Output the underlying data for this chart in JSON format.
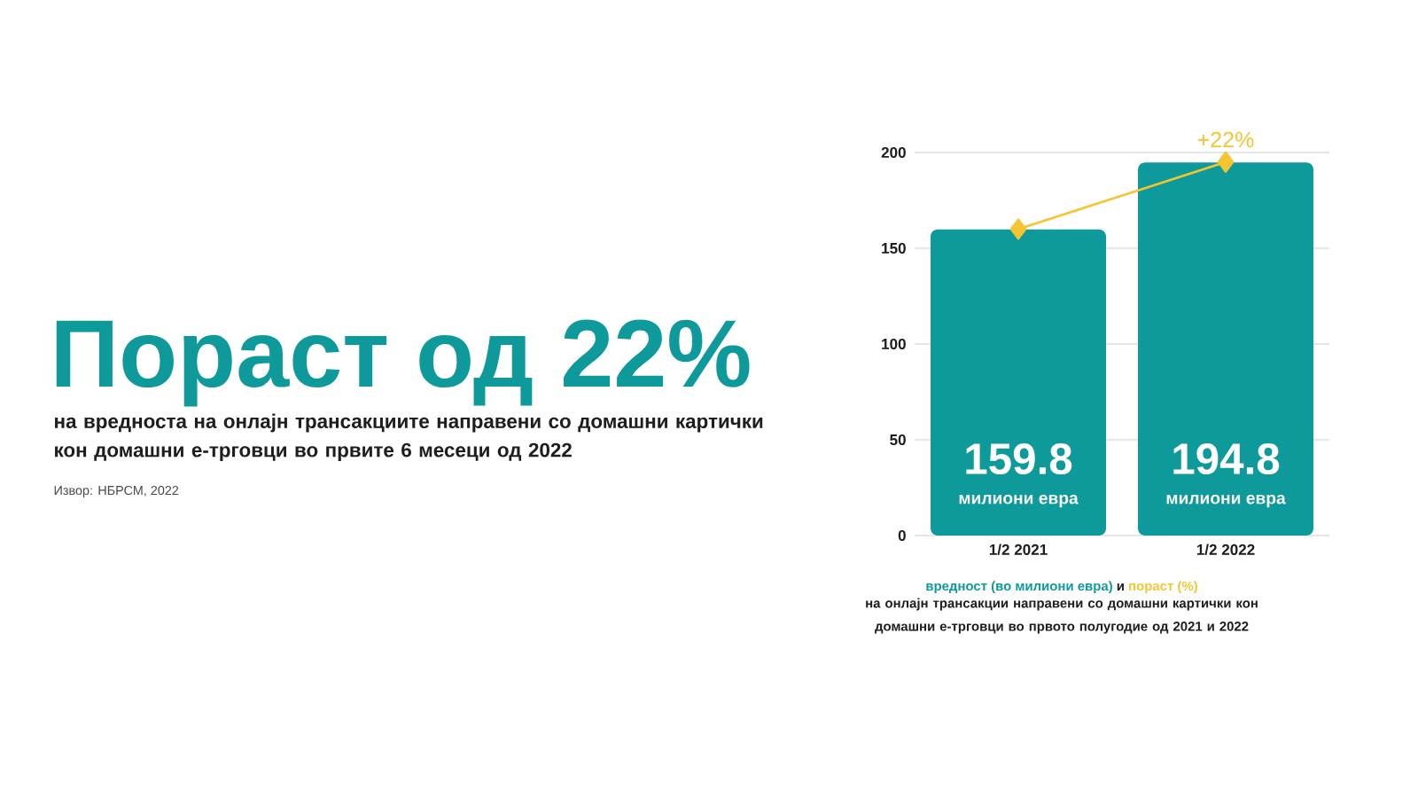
{
  "chart_data": {
    "type": "bar",
    "title": "Пораст од 22%",
    "subtitle": "на вредноста на онлајн трансакциите направени со домашни картички кон домашни е-трговци во првите 6 месеци од 2022",
    "categories": [
      "1/2 2021",
      "1/2 2022"
    ],
    "series": [
      {
        "name": "вредност (во милиони евра)",
        "color": "#0e999b",
        "values": [
          159.8,
          194.8
        ],
        "value_labels": [
          "159.8",
          "194.8"
        ]
      },
      {
        "name": "пораст (%)",
        "type": "line",
        "color": "#f5c431",
        "marker": "diamond",
        "values": [
          160,
          195
        ]
      }
    ],
    "ylim": [
      0,
      200
    ],
    "yticks": [
      0,
      50,
      100,
      150,
      200
    ],
    "grid": "y",
    "annotations": [
      "Извор: НБРСМ, 2022",
      {
        "text": "+22%",
        "x": "1/2 2022",
        "y": 195
      },
      "милиони евра",
      "милиони евра",
      "и",
      "на онлајн трансакции направени со домашни картички кон домашни е-трговци во првото полугодие од 2021 и 2022"
    ]
  }
}
